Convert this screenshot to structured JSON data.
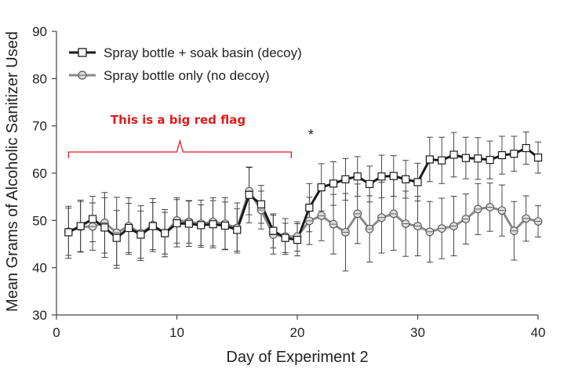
{
  "chart_data": {
    "type": "line",
    "title": "",
    "xlabel": "Day of Experiment 2",
    "ylabel": "Mean Grams of Alcoholic Sanitizer Used",
    "xlim": [
      0,
      40
    ],
    "ylim": [
      30,
      90
    ],
    "xticks": [
      0,
      10,
      20,
      30,
      40
    ],
    "yticks": [
      30,
      40,
      50,
      60,
      70,
      80,
      90
    ],
    "grid": false,
    "legend_position": "top-left",
    "x": [
      1,
      2,
      3,
      4,
      5,
      6,
      7,
      8,
      9,
      10,
      11,
      12,
      13,
      14,
      15,
      16,
      17,
      18,
      19,
      20,
      21,
      22,
      23,
      24,
      25,
      26,
      27,
      28,
      29,
      30,
      31,
      32,
      33,
      34,
      35,
      36,
      37,
      38,
      39,
      40
    ],
    "series": [
      {
        "name": "Spray bottle + soak basin (decoy)",
        "color": "#1a1a1a",
        "marker": "square",
        "values": [
          47.5,
          48.8,
          50.3,
          48.5,
          46.3,
          48.4,
          47.0,
          48.8,
          47.3,
          49.4,
          49.3,
          49.0,
          49.2,
          48.9,
          48.0,
          55.4,
          53.4,
          47.8,
          46.3,
          45.9,
          52.7,
          57.0,
          57.8,
          58.7,
          59.3,
          57.7,
          59.3,
          59.4,
          58.7,
          58.1,
          62.9,
          62.7,
          63.9,
          63.2,
          63.1,
          62.8,
          63.8,
          64.1,
          65.3,
          63.3
        ],
        "error": [
          5.5,
          5.5,
          4.8,
          6.3,
          5.8,
          5.2,
          5.0,
          5.0,
          4.4,
          5.0,
          4.8,
          4.3,
          5.0,
          5.0,
          4.5,
          5.9,
          4.0,
          3.6,
          3.1,
          3.4,
          5.1,
          5.0,
          4.6,
          4.4,
          4.2,
          3.8,
          4.5,
          4.3,
          4.0,
          4.0,
          4.7,
          4.9,
          4.7,
          4.4,
          4.4,
          4.0,
          4.0,
          3.7,
          3.4,
          3.3
        ]
      },
      {
        "name": "Spray bottle only (no decoy)",
        "color": "#8a8a8a",
        "marker": "circle",
        "values": [
          47.6,
          48.7,
          48.7,
          49.5,
          47.4,
          48.8,
          47.3,
          49.0,
          47.3,
          50.0,
          49.7,
          49.3,
          49.7,
          49.3,
          48.4,
          56.2,
          52.2,
          47.0,
          46.6,
          46.6,
          49.9,
          51.0,
          49.2,
          47.5,
          51.4,
          48.2,
          50.6,
          51.4,
          49.3,
          48.8,
          47.6,
          48.3,
          48.8,
          50.3,
          52.4,
          52.8,
          52.1,
          47.8,
          50.4,
          49.8
        ],
        "error": [
          5.0,
          5.3,
          5.0,
          6.4,
          7.5,
          6.0,
          5.8,
          5.6,
          5.0,
          4.8,
          4.5,
          5.0,
          5.1,
          5.5,
          5.3,
          5.0,
          4.0,
          4.1,
          3.8,
          3.1,
          5.0,
          5.3,
          6.3,
          8.2,
          6.3,
          7.0,
          7.5,
          7.7,
          6.9,
          6.3,
          6.4,
          6.4,
          6.3,
          5.3,
          5.4,
          5.1,
          5.4,
          6.2,
          4.8,
          3.3
        ]
      }
    ],
    "annotations": [
      {
        "text": "This is a big red flag",
        "color": "#e31b1b",
        "bracket_x": [
          1,
          19.5
        ]
      },
      {
        "text": "*",
        "x": 21
      }
    ]
  }
}
